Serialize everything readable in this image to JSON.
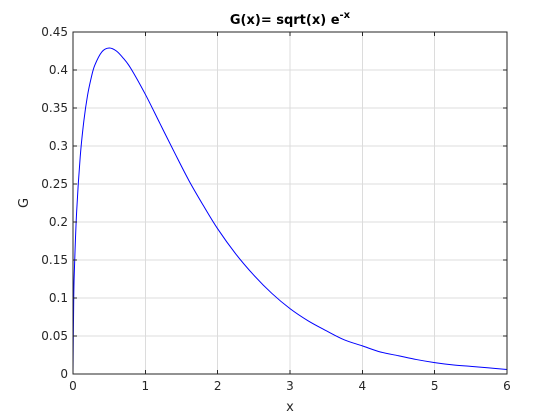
{
  "chart_data": {
    "type": "line",
    "title": {
      "main": "G(x)= sqrt(x) e",
      "superscript": "-x"
    },
    "xlabel": "x",
    "ylabel": "G",
    "xlim": [
      0,
      6
    ],
    "ylim": [
      0,
      0.45
    ],
    "grid": true,
    "x_ticks": [
      {
        "value": 0,
        "label": "0"
      },
      {
        "value": 1,
        "label": "1"
      },
      {
        "value": 2,
        "label": "2"
      },
      {
        "value": 3,
        "label": "3"
      },
      {
        "value": 4,
        "label": "4"
      },
      {
        "value": 5,
        "label": "5"
      },
      {
        "value": 6,
        "label": "6"
      }
    ],
    "y_ticks": [
      {
        "value": 0,
        "label": "0"
      },
      {
        "value": 0.05,
        "label": "0.05"
      },
      {
        "value": 0.1,
        "label": "0.1"
      },
      {
        "value": 0.15,
        "label": "0.15"
      },
      {
        "value": 0.2,
        "label": "0.2"
      },
      {
        "value": 0.25,
        "label": "0.25"
      },
      {
        "value": 0.3,
        "label": "0.3"
      },
      {
        "value": 0.35,
        "label": "0.35"
      },
      {
        "value": 0.4,
        "label": "0.4"
      },
      {
        "value": 0.45,
        "label": "0.45"
      }
    ],
    "series": [
      {
        "color": "#0000ff",
        "x": [
          0.01,
          0.02,
          0.05,
          0.1,
          0.15,
          0.2,
          0.25,
          0.3,
          0.4,
          0.5,
          0.6,
          0.7,
          0.8,
          1.0,
          1.2,
          1.4,
          1.6,
          1.8,
          2.0,
          2.25,
          2.5,
          2.75,
          3.0,
          3.25,
          3.5,
          3.75,
          4.0,
          4.25,
          4.5,
          4.75,
          5.0,
          5.25,
          5.5,
          5.75,
          6.0
        ],
        "y": [
          0.099,
          0.139,
          0.213,
          0.286,
          0.333,
          0.366,
          0.389,
          0.406,
          0.424,
          0.429,
          0.425,
          0.415,
          0.402,
          0.368,
          0.33,
          0.292,
          0.255,
          0.222,
          0.191,
          0.158,
          0.13,
          0.106,
          0.086,
          0.07,
          0.057,
          0.045,
          0.037,
          0.029,
          0.024,
          0.019,
          0.015,
          0.012,
          0.01,
          0.008,
          0.006
        ]
      }
    ]
  }
}
